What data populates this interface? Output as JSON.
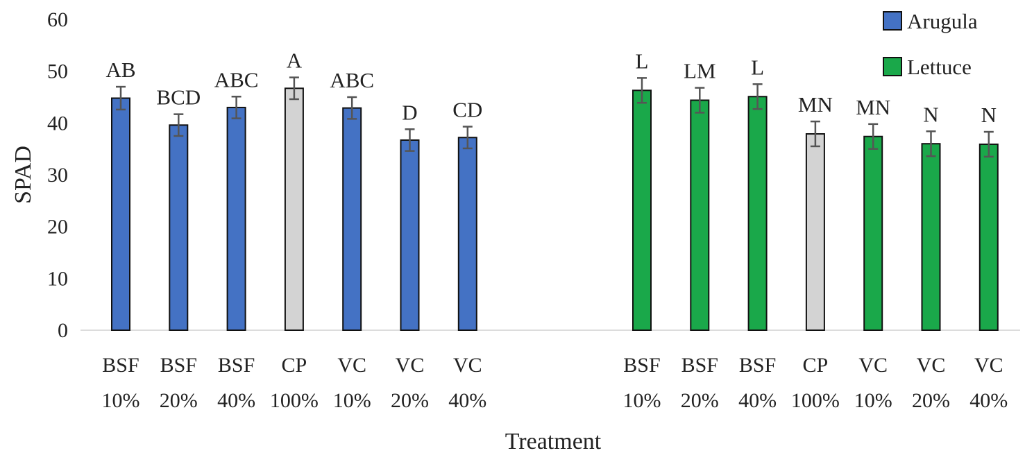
{
  "chart_data": {
    "type": "bar",
    "title": "",
    "xlabel": "Treatment",
    "ylabel": "SPAD",
    "ylim": [
      0,
      60
    ],
    "yticks": [
      0,
      10,
      20,
      30,
      40,
      50,
      60
    ],
    "grid": false,
    "legend_position": "top-right",
    "legend": [
      {
        "name": "Arugula",
        "color": "#4472c4"
      },
      {
        "name": "Lettuce",
        "color": "#1aa84a"
      }
    ],
    "control_color": "#d3d3d3",
    "groups": [
      {
        "name": "Arugula",
        "color": "#4472c4",
        "bars": [
          {
            "line1": "BSF",
            "line2": "10%",
            "value": 44.8,
            "error": 2.2,
            "letter": "AB",
            "control": false
          },
          {
            "line1": "BSF",
            "line2": "20%",
            "value": 39.6,
            "error": 2.1,
            "letter": "BCD",
            "control": false
          },
          {
            "line1": "BSF",
            "line2": "40%",
            "value": 43.0,
            "error": 2.1,
            "letter": "ABC",
            "control": false
          },
          {
            "line1": "CP",
            "line2": "100%",
            "value": 46.7,
            "error": 2.1,
            "letter": "A",
            "control": true
          },
          {
            "line1": "VC",
            "line2": "10%",
            "value": 42.9,
            "error": 2.1,
            "letter": "ABC",
            "control": false
          },
          {
            "line1": "VC",
            "line2": "20%",
            "value": 36.7,
            "error": 2.1,
            "letter": "D",
            "control": false
          },
          {
            "line1": "VC",
            "line2": "40%",
            "value": 37.2,
            "error": 2.1,
            "letter": "CD",
            "control": false
          }
        ]
      },
      {
        "name": "Lettuce",
        "color": "#1aa84a",
        "bars": [
          {
            "line1": "BSF",
            "line2": "10%",
            "value": 46.3,
            "error": 2.4,
            "letter": "L",
            "control": false
          },
          {
            "line1": "BSF",
            "line2": "20%",
            "value": 44.4,
            "error": 2.4,
            "letter": "LM",
            "control": false
          },
          {
            "line1": "BSF",
            "line2": "40%",
            "value": 45.1,
            "error": 2.4,
            "letter": "L",
            "control": false
          },
          {
            "line1": "CP",
            "line2": "100%",
            "value": 37.9,
            "error": 2.4,
            "letter": "MN",
            "control": true
          },
          {
            "line1": "VC",
            "line2": "10%",
            "value": 37.4,
            "error": 2.4,
            "letter": "MN",
            "control": false
          },
          {
            "line1": "VC",
            "line2": "20%",
            "value": 36.0,
            "error": 2.4,
            "letter": "N",
            "control": false
          },
          {
            "line1": "VC",
            "line2": "40%",
            "value": 35.9,
            "error": 2.4,
            "letter": "N",
            "control": false
          }
        ]
      }
    ]
  }
}
